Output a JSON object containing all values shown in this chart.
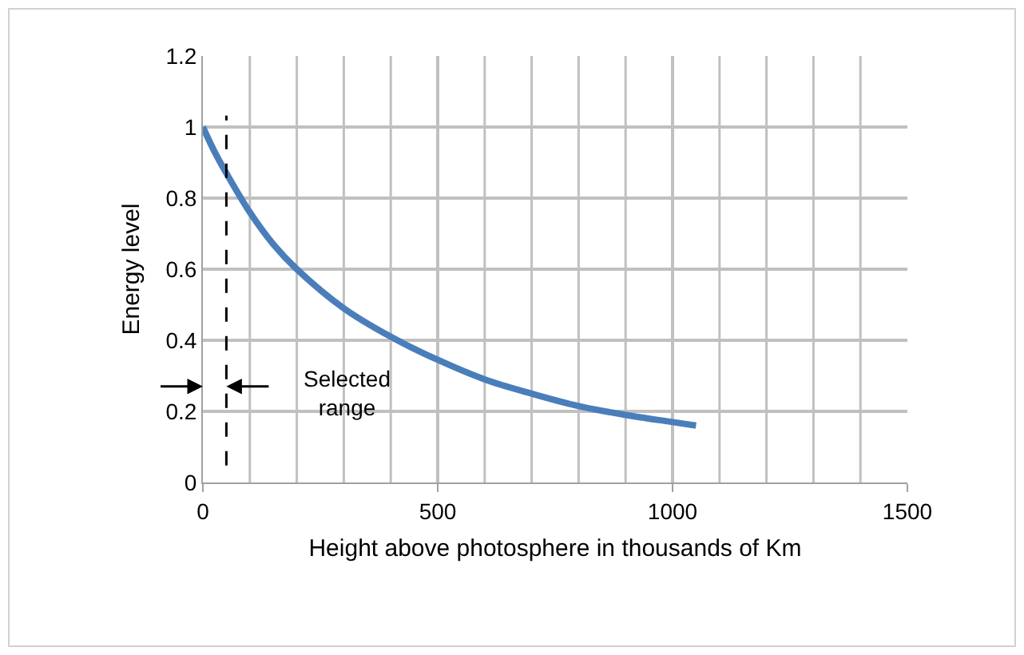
{
  "chart_data": {
    "type": "line",
    "xlabel": "Height above photosphere in thousands of Km",
    "ylabel": "Energy level",
    "x": [
      0,
      25,
      50,
      100,
      150,
      200,
      300,
      400,
      500,
      600,
      700,
      800,
      900,
      1000,
      1050
    ],
    "series": [
      {
        "color": "#4a7ebb",
        "values": [
          1,
          0.93,
          0.87,
          0.76,
          0.67,
          0.6,
          0.49,
          0.41,
          0.345,
          0.29,
          0.25,
          0.215,
          0.19,
          0.17,
          0.16
        ]
      }
    ],
    "xlim": [
      0,
      1500
    ],
    "xticks": [
      0,
      500,
      1000,
      1500
    ],
    "ylim": [
      0,
      1.2
    ],
    "yticks": [
      0,
      0.2,
      0.4,
      0.6,
      0.8,
      1,
      1.2
    ],
    "grid": true,
    "marker": "none",
    "line_style": "solid",
    "ref_lines": [
      {
        "axis": "x",
        "value": 50,
        "color": "#000000",
        "line_style": "dashed"
      }
    ],
    "annotations": [
      "Selected\nrange"
    ]
  }
}
